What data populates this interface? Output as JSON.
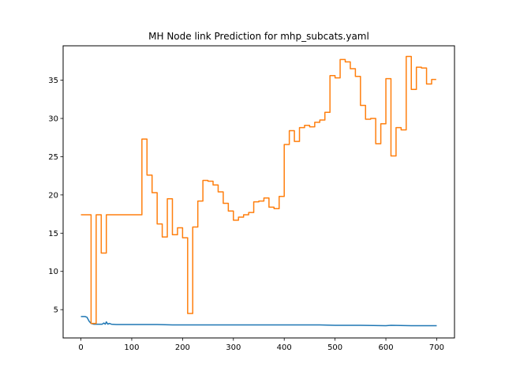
{
  "chart_data": {
    "type": "line",
    "title": "MH Node link Prediction for mhp_subcats.yaml",
    "xlabel": "",
    "ylabel": "",
    "xlim": [
      -35,
      735
    ],
    "ylim": [
      1.3,
      39.5
    ],
    "xticks": [
      0,
      100,
      200,
      300,
      400,
      500,
      600,
      700
    ],
    "yticks": [
      5,
      10,
      15,
      20,
      25,
      30,
      35
    ],
    "grid": false,
    "legend": "none",
    "series": [
      {
        "color": "#1f77b4",
        "step": false,
        "points": [
          [
            0,
            4.1
          ],
          [
            8,
            4.1
          ],
          [
            12,
            4.0
          ],
          [
            16,
            3.5
          ],
          [
            20,
            3.2
          ],
          [
            25,
            3.1
          ],
          [
            30,
            3.1
          ],
          [
            36,
            3.1
          ],
          [
            42,
            3.1
          ],
          [
            45,
            3.25
          ],
          [
            48,
            3.1
          ],
          [
            50,
            3.4
          ],
          [
            53,
            3.1
          ],
          [
            56,
            3.2
          ],
          [
            60,
            3.1
          ],
          [
            70,
            3.05
          ],
          [
            100,
            3.05
          ],
          [
            150,
            3.05
          ],
          [
            180,
            3.0
          ],
          [
            220,
            3.0
          ],
          [
            300,
            3.0
          ],
          [
            400,
            3.0
          ],
          [
            460,
            3.0
          ],
          [
            470,
            3.0
          ],
          [
            500,
            2.95
          ],
          [
            550,
            2.95
          ],
          [
            600,
            2.9
          ],
          [
            610,
            2.95
          ],
          [
            650,
            2.9
          ],
          [
            700,
            2.9
          ]
        ]
      },
      {
        "color": "#ff7f0e",
        "step": true,
        "points": [
          [
            0,
            17.4
          ],
          [
            20,
            3.2
          ],
          [
            30,
            17.4
          ],
          [
            40,
            12.4
          ],
          [
            50,
            17.4
          ],
          [
            120,
            27.3
          ],
          [
            130,
            22.6
          ],
          [
            140,
            20.3
          ],
          [
            150,
            16.2
          ],
          [
            160,
            14.5
          ],
          [
            170,
            19.5
          ],
          [
            180,
            14.8
          ],
          [
            190,
            15.7
          ],
          [
            200,
            14.4
          ],
          [
            210,
            4.5
          ],
          [
            220,
            15.8
          ],
          [
            230,
            19.2
          ],
          [
            240,
            21.9
          ],
          [
            250,
            21.8
          ],
          [
            260,
            21.3
          ],
          [
            270,
            20.4
          ],
          [
            280,
            18.9
          ],
          [
            290,
            17.9
          ],
          [
            300,
            16.7
          ],
          [
            310,
            17.1
          ],
          [
            320,
            17.4
          ],
          [
            330,
            17.7
          ],
          [
            340,
            19.1
          ],
          [
            350,
            19.2
          ],
          [
            360,
            19.6
          ],
          [
            370,
            18.4
          ],
          [
            380,
            18.2
          ],
          [
            390,
            19.8
          ],
          [
            400,
            26.6
          ],
          [
            410,
            28.4
          ],
          [
            420,
            27.0
          ],
          [
            430,
            28.8
          ],
          [
            440,
            29.1
          ],
          [
            450,
            28.9
          ],
          [
            460,
            29.5
          ],
          [
            470,
            29.8
          ],
          [
            480,
            30.8
          ],
          [
            490,
            35.6
          ],
          [
            500,
            35.3
          ],
          [
            510,
            37.7
          ],
          [
            520,
            37.4
          ],
          [
            530,
            36.5
          ],
          [
            540,
            35.5
          ],
          [
            550,
            31.7
          ],
          [
            560,
            29.9
          ],
          [
            570,
            30.0
          ],
          [
            580,
            26.7
          ],
          [
            590,
            29.3
          ],
          [
            600,
            35.2
          ],
          [
            610,
            25.1
          ],
          [
            620,
            28.8
          ],
          [
            630,
            28.5
          ],
          [
            640,
            38.1
          ],
          [
            650,
            33.8
          ],
          [
            660,
            36.7
          ],
          [
            670,
            36.6
          ],
          [
            680,
            34.5
          ],
          [
            690,
            35.1
          ],
          [
            699,
            35.1
          ]
        ]
      }
    ]
  }
}
